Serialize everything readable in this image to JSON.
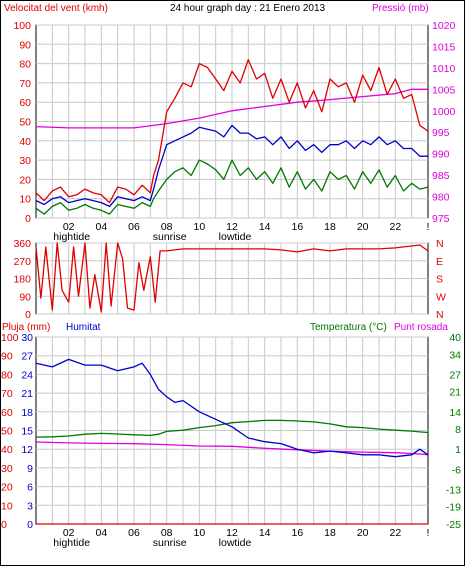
{
  "colors": {
    "wind": "#e00000",
    "pressure": "#e000e0",
    "gust_blue": "#0000cc",
    "avg_green": "#007700",
    "dir": "#e00000",
    "rain": "#e00000",
    "humidity": "#0000cc",
    "temperature": "#007700",
    "dewpoint": "#e000e0",
    "grid": "#c8c8c8",
    "axis_text": "#000000"
  },
  "header": {
    "left": "Velocitat del vent (kmh)",
    "center": "24 hour graph day : 21 Enero 2013",
    "right": "Pressió (mb)"
  },
  "bottom_header": {
    "rain": "Pluja (mm)",
    "humidity": "Humitat",
    "temperature": "Temperatura (°C)",
    "dewpoint": "Punt rosada"
  },
  "time_axis": {
    "hours": [
      "02",
      "04",
      "06",
      "08",
      "10",
      "12",
      "14",
      "16",
      "18",
      "20",
      "22",
      "!"
    ],
    "markers": {
      "02": "hightide",
      "08": "sunrise",
      "12": "lowtide"
    }
  },
  "chart_data": [
    {
      "type": "line",
      "title": "24 hour graph day : 21 Enero 2013",
      "x_range": [
        0,
        24
      ],
      "ylabel": "Velocitat del vent (kmh)",
      "ylim": [
        0,
        100
      ],
      "y_ticks": [
        0,
        10,
        20,
        30,
        40,
        50,
        60,
        70,
        80,
        90,
        100
      ],
      "y2label": "Pressió (mb)",
      "y2lim": [
        975,
        1020
      ],
      "y2_ticks": [
        975,
        980,
        985,
        990,
        995,
        1000,
        1005,
        1010,
        1015,
        1020
      ],
      "series": [
        {
          "role": "wind_max",
          "axis": "left",
          "x": [
            0,
            0.5,
            1,
            1.5,
            2,
            2.5,
            3,
            3.5,
            4,
            4.5,
            5,
            5.5,
            6,
            6.5,
            7,
            7.2,
            7.5,
            8,
            8.5,
            9,
            9.5,
            10,
            10.5,
            11,
            11.5,
            12,
            12.5,
            13,
            13.5,
            14,
            14.5,
            15,
            15.5,
            16,
            16.5,
            17,
            17.5,
            18,
            18.5,
            19,
            19.5,
            20,
            20.5,
            21,
            21.5,
            22,
            22.5,
            23,
            23.5,
            24
          ],
          "values": [
            13,
            9,
            14,
            16,
            11,
            12,
            15,
            13,
            12,
            8,
            16,
            15,
            12,
            17,
            13,
            22,
            30,
            55,
            62,
            70,
            68,
            80,
            78,
            72,
            66,
            76,
            70,
            82,
            72,
            75,
            62,
            72,
            60,
            70,
            57,
            66,
            55,
            72,
            68,
            70,
            60,
            74,
            66,
            78,
            64,
            72,
            62,
            64,
            48,
            45
          ]
        },
        {
          "role": "wind_avg",
          "axis": "left",
          "x": [
            0,
            0.5,
            1,
            1.5,
            2,
            2.5,
            3,
            3.5,
            4,
            4.5,
            5,
            5.5,
            6,
            6.5,
            7,
            7.2,
            7.5,
            8,
            8.5,
            9,
            9.5,
            10,
            10.5,
            11,
            11.5,
            12,
            12.5,
            13,
            13.5,
            14,
            14.5,
            15,
            15.5,
            16,
            16.5,
            17,
            17.5,
            18,
            18.5,
            19,
            19.5,
            20,
            20.5,
            21,
            21.5,
            22,
            22.5,
            23,
            23.5,
            24
          ],
          "values": [
            9,
            7,
            10,
            11,
            8,
            9,
            10,
            9,
            8,
            6,
            11,
            10,
            9,
            11,
            9,
            15,
            25,
            38,
            40,
            42,
            44,
            47,
            46,
            45,
            42,
            48,
            44,
            44,
            41,
            42,
            38,
            42,
            36,
            40,
            35,
            38,
            34,
            38,
            38,
            40,
            36,
            40,
            38,
            42,
            38,
            40,
            36,
            36,
            32,
            32
          ]
        },
        {
          "role": "wind_low",
          "axis": "left",
          "x": [
            0,
            0.5,
            1,
            1.5,
            2,
            2.5,
            3,
            3.5,
            4,
            4.5,
            5,
            5.5,
            6,
            6.5,
            7,
            7.2,
            7.5,
            8,
            8.5,
            9,
            9.5,
            10,
            10.5,
            11,
            11.5,
            12,
            12.5,
            13,
            13.5,
            14,
            14.5,
            15,
            15.5,
            16,
            16.5,
            17,
            17.5,
            18,
            18.5,
            19,
            19.5,
            20,
            20.5,
            21,
            21.5,
            22,
            22.5,
            23,
            23.5,
            24
          ],
          "values": [
            5,
            2,
            6,
            8,
            4,
            5,
            7,
            5,
            4,
            2,
            7,
            6,
            5,
            8,
            6,
            10,
            14,
            20,
            24,
            26,
            22,
            30,
            28,
            25,
            20,
            30,
            22,
            26,
            20,
            24,
            18,
            26,
            16,
            24,
            15,
            20,
            14,
            24,
            20,
            22,
            15,
            24,
            18,
            25,
            16,
            22,
            14,
            18,
            15,
            16
          ]
        },
        {
          "role": "pressure",
          "axis": "right",
          "x": [
            0,
            2,
            4,
            6,
            8,
            10,
            12,
            14,
            16,
            18,
            20,
            22,
            23,
            24
          ],
          "values": [
            996.3,
            996,
            996,
            996,
            997,
            998.3,
            1000,
            1001,
            1002,
            1002.6,
            1003.3,
            1004,
            1005,
            1005
          ]
        }
      ]
    },
    {
      "type": "line",
      "ylabel": "N W S E N",
      "direction_ticks": [
        0,
        90,
        180,
        270,
        360
      ],
      "direction_labels": [
        "N",
        "W",
        "S",
        "E",
        "N"
      ],
      "ylim": [
        0,
        360
      ],
      "series": [
        {
          "role": "wind_direction",
          "x": [
            0,
            0.3,
            0.6,
            1,
            1.3,
            1.6,
            2,
            2.3,
            2.6,
            3,
            3.3,
            3.6,
            4,
            4.3,
            4.6,
            5,
            5.3,
            5.6,
            6,
            6.3,
            6.6,
            7,
            7.3,
            7.6,
            8,
            9,
            10,
            11,
            12,
            13,
            14,
            15,
            16,
            17,
            18,
            19,
            20,
            21,
            22,
            22.5,
            23,
            23.5,
            24
          ],
          "values": [
            340,
            80,
            340,
            20,
            360,
            120,
            60,
            340,
            90,
            360,
            30,
            200,
            10,
            360,
            40,
            360,
            280,
            30,
            20,
            260,
            120,
            290,
            60,
            320,
            320,
            330,
            330,
            330,
            330,
            330,
            330,
            325,
            315,
            330,
            320,
            330,
            330,
            330,
            335,
            340,
            345,
            350,
            320
          ]
        }
      ]
    },
    {
      "type": "line",
      "ylabel": "Pluja (mm) / Humitat",
      "ylim": [
        0,
        100
      ],
      "y_ticks": [
        0,
        10,
        20,
        30,
        40,
        50,
        60,
        70,
        80,
        90,
        100
      ],
      "rain_ticks": [
        0,
        3,
        6,
        9,
        12,
        15,
        18,
        21,
        24,
        27,
        30
      ],
      "y2label": "Temperatura (°C) Punt rosada",
      "y2lim": [
        -25,
        40
      ],
      "y2_ticks": [
        -25,
        -19,
        -13,
        -6,
        1,
        8,
        14,
        21,
        27,
        34,
        40
      ],
      "series": [
        {
          "role": "rain",
          "axis": "left",
          "x": [
            0,
            24
          ],
          "values": [
            0,
            0
          ]
        },
        {
          "role": "humidity",
          "axis": "left",
          "x": [
            0,
            1,
            2,
            3,
            4,
            5,
            6,
            6.5,
            7,
            7.5,
            8,
            8.5,
            9,
            10,
            11,
            12,
            13,
            14,
            15,
            16,
            17,
            18,
            19,
            20,
            21,
            22,
            23,
            23.5,
            24
          ],
          "values": [
            86,
            84,
            88,
            85,
            85,
            82,
            84,
            86,
            80,
            72,
            68,
            65,
            66,
            60,
            56,
            52,
            46,
            44,
            43,
            40,
            38,
            39,
            38,
            37,
            37,
            36,
            37,
            40,
            37
          ]
        },
        {
          "role": "temperature",
          "axis": "right",
          "x": [
            0,
            1,
            2,
            3,
            4,
            5,
            6,
            7,
            7.5,
            8,
            9,
            10,
            11,
            12,
            13,
            14,
            15,
            16,
            17,
            18,
            19,
            20,
            21,
            22,
            23,
            23.5,
            24
          ],
          "values": [
            5.2,
            5.3,
            5.6,
            6.2,
            6.5,
            6.3,
            6,
            5.8,
            6.2,
            7.2,
            7.6,
            8.5,
            9.2,
            10.2,
            10.6,
            11,
            11,
            10.8,
            10.5,
            9.8,
            8.8,
            8.5,
            8,
            7.6,
            7.3,
            7,
            6.8
          ]
        },
        {
          "role": "dewpoint",
          "axis": "right",
          "x": [
            0,
            2,
            4,
            6,
            8,
            10,
            12,
            14,
            16,
            18,
            20,
            22,
            23,
            24
          ],
          "values": [
            3.5,
            3.2,
            3,
            2.9,
            2.6,
            2.1,
            2,
            1.3,
            0.8,
            0.3,
            0,
            -0.2,
            -0.5,
            -0.9
          ]
        }
      ]
    }
  ]
}
